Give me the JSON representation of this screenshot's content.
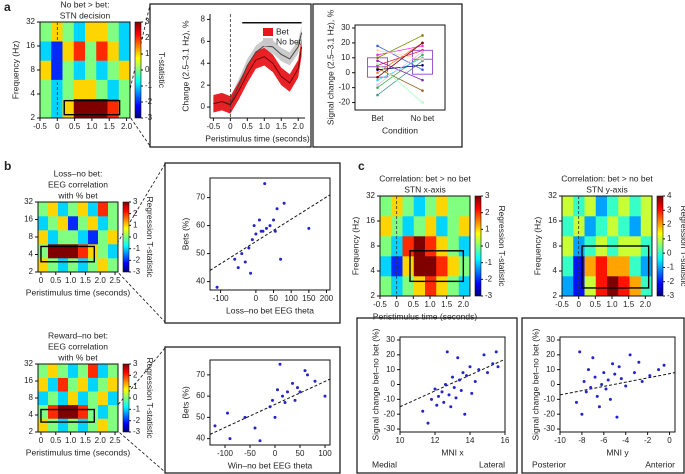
{
  "panels": [
    "a",
    "b",
    "c"
  ],
  "chart_data": [
    {
      "type": "heatmap",
      "title": [
        "No bet > bet:",
        "STN decision"
      ],
      "ylabel": "Frequency (Hz)",
      "xlim": [
        -0.5,
        2.1
      ],
      "xticks": [
        -0.5,
        0,
        0.5,
        {
          "value": 1,
          "label": "1.0"
        },
        {
          "value": 1.5,
          "label": "1.5"
        },
        {
          "value": 2,
          "label": "2.0"
        }
      ],
      "ylim": [
        2,
        32
      ],
      "yticks": [
        2,
        4,
        8,
        16,
        32
      ],
      "ylog": true,
      "event_time": 0,
      "z": [
        [
          0,
          -1,
          1,
          3,
          3,
          3,
          2,
          0
        ],
        [
          0,
          -1,
          0,
          1,
          1,
          0,
          -1,
          0
        ],
        [
          1,
          -2,
          0,
          -1,
          0,
          -1,
          0,
          1
        ],
        [
          -1,
          -2,
          1,
          2,
          0,
          2,
          1,
          -1
        ],
        [
          0,
          1,
          0,
          -1,
          1,
          1,
          0,
          -1
        ]
      ],
      "clim": [
        -3,
        3
      ],
      "cticks": [
        3,
        2,
        1,
        0,
        -1,
        -2,
        -3
      ],
      "clabel": "T-statistic",
      "roi": {
        "x": [
          0.2,
          1.8
        ],
        "y": [
          2.2,
          3.3
        ]
      }
    },
    {
      "type": "band_line",
      "ylabel": "Change (2.5–3.1 Hz), %",
      "xlabel": "Peristimulus time (seconds)",
      "xlim": [
        -0.6,
        2.2
      ],
      "xticks": [
        -0.5,
        0,
        0.5,
        {
          "value": 1,
          "label": "1.0"
        },
        {
          "value": 1.5,
          "label": "1.5"
        },
        {
          "value": 2,
          "label": "2.0"
        }
      ],
      "ylim": [
        -1,
        8.5
      ],
      "yticks": [
        0,
        2,
        4,
        6,
        8
      ],
      "event_time": 0,
      "sig_bar": {
        "x": [
          0.35,
          2.1
        ],
        "y": 7.7
      },
      "x": [
        -0.5,
        -0.25,
        0,
        0.25,
        0.5,
        0.75,
        1,
        1.25,
        1.5,
        1.75,
        2,
        2.1
      ],
      "series": [
        {
          "name": "No bet",
          "color": "#444444",
          "band_color": "#c8c8c8",
          "values": [
            0.3,
            0.5,
            0.3,
            2.0,
            3.8,
            5.0,
            5.6,
            5.5,
            4.8,
            4.4,
            5.5,
            6.8
          ],
          "lower": [
            -0.3,
            -0.1,
            -0.3,
            1.4,
            3.2,
            4.4,
            5.0,
            4.9,
            4.2,
            3.8,
            4.9,
            6.2
          ],
          "upper": [
            0.9,
            1.1,
            0.9,
            2.6,
            4.4,
            5.6,
            6.2,
            6.1,
            5.4,
            5.0,
            6.1,
            7.4
          ]
        },
        {
          "name": "Bet",
          "color": "#7a0000",
          "band_color": "#e8161b",
          "values": [
            0.3,
            0.5,
            0.2,
            1.5,
            3.0,
            4.3,
            4.6,
            4.0,
            2.8,
            2.2,
            3.5,
            5.5
          ],
          "lower": [
            -0.5,
            -0.3,
            -0.6,
            0.7,
            2.2,
            3.5,
            3.8,
            3.2,
            2.0,
            1.4,
            2.7,
            4.7
          ],
          "upper": [
            1.1,
            1.3,
            1.0,
            2.3,
            3.8,
            5.1,
            5.4,
            4.8,
            3.6,
            3.0,
            4.3,
            6.3
          ]
        }
      ]
    },
    {
      "type": "paired",
      "ylabel": "Signal change (2.5–3.1 Hz), %",
      "xlabel": "Condition",
      "categories": [
        "Bet",
        "No bet"
      ],
      "ylim": [
        -25,
        32
      ],
      "yticks": [
        -20,
        -10,
        0,
        10,
        20,
        30
      ],
      "values": [
        [
          5,
          -10,
          18,
          0,
          8,
          -5,
          12,
          3,
          -15,
          10,
          2,
          -8,
          6,
          15,
          -3
        ],
        [
          15,
          12,
          2,
          20,
          -5,
          10,
          18,
          -12,
          8,
          25,
          5,
          14,
          -20,
          9,
          20
        ]
      ],
      "boxes": [
        {
          "q1": -3,
          "median": 4,
          "q3": 10
        },
        {
          "q1": -1,
          "median": 9,
          "q3": 15
        }
      ],
      "box_color": "#9b59d0",
      "line_colors": [
        "#e6194b",
        "#3cb44b",
        "#4363d8",
        "#f58231",
        "#911eb4",
        "#42d4f4",
        "#f032e6",
        "#9a6324",
        "#469990",
        "#808000",
        "#000075",
        "#e6beff",
        "#aaffc3",
        "#ffd8b1",
        "#800000"
      ]
    },
    {
      "type": "heatmap",
      "title": [
        "Loss–no bet:",
        "EEG correlation",
        "with % bet"
      ],
      "xlabel": "Peristimulus time (seconds)",
      "xlim": [
        -0.1,
        2.6
      ],
      "xticks": [
        0,
        0.5,
        {
          "value": 1,
          "label": "1.0"
        },
        {
          "value": 1.5,
          "label": "1.5"
        },
        {
          "value": 2,
          "label": "2.0"
        },
        {
          "value": 2.5,
          "label": "2.5"
        }
      ],
      "ylim": [
        2,
        32
      ],
      "yticks": [
        2,
        4,
        8,
        16,
        32
      ],
      "ylog": true,
      "z": [
        [
          1,
          0,
          -1,
          0,
          -1,
          0,
          1,
          0
        ],
        [
          0,
          3,
          3,
          3,
          2,
          1,
          0,
          -1
        ],
        [
          1,
          -1,
          0,
          0,
          -1,
          -2,
          0,
          1
        ],
        [
          -1,
          0,
          1,
          -2,
          0,
          1,
          -1,
          0
        ],
        [
          0,
          1,
          -1,
          0,
          1,
          -1,
          2,
          0
        ]
      ],
      "clim": [
        -3,
        3
      ],
      "cticks": [
        3,
        2,
        1,
        0,
        -1,
        -2,
        -3
      ],
      "clabel": "Regression T-statistic",
      "roi": {
        "x": [
          0,
          1.8
        ],
        "y": [
          3,
          5.5
        ]
      }
    },
    {
      "type": "scatter",
      "ylabel": "Bets (%)",
      "xlabel": "Loss–no bet EEG theta",
      "color": "#2323d0",
      "xlim": [
        -130,
        210
      ],
      "xticks": [
        -100,
        0,
        50,
        100,
        150,
        200
      ],
      "ylim": [
        37,
        77
      ],
      "yticks": [
        40,
        50,
        60,
        70
      ],
      "x": [
        -110,
        -60,
        -50,
        -40,
        -30,
        -20,
        -15,
        -10,
        -5,
        0,
        10,
        15,
        20,
        25,
        30,
        40,
        50,
        55,
        60,
        70,
        80,
        150
      ],
      "y": [
        38,
        48,
        45,
        50,
        47,
        52,
        43,
        55,
        60,
        57,
        62,
        58,
        58,
        75,
        59,
        60,
        62,
        58,
        66,
        48,
        68,
        59
      ],
      "fit": {
        "x": [
          -130,
          210
        ],
        "y": [
          44,
          71
        ]
      }
    },
    {
      "type": "heatmap",
      "title": [
        "Reward–no bet:",
        "EEG correlation",
        "with % bet"
      ],
      "xlabel": "Peristimulus time (seconds)",
      "xlim": [
        -0.1,
        2.6
      ],
      "xticks": [
        0,
        0.5,
        {
          "value": 1,
          "label": "1.0"
        },
        {
          "value": 1.5,
          "label": "1.5"
        },
        {
          "value": 2,
          "label": "2.0"
        },
        {
          "value": 2.5,
          "label": "2.5"
        }
      ],
      "ylim": [
        2,
        32
      ],
      "yticks": [
        2,
        4,
        8,
        16,
        32
      ],
      "ylog": true,
      "z": [
        [
          1,
          0,
          -1,
          0,
          -1,
          0,
          1,
          0
        ],
        [
          0,
          2,
          3,
          3,
          2,
          0,
          -1,
          0
        ],
        [
          -1,
          0,
          -1,
          1,
          -1,
          0,
          1,
          -1
        ],
        [
          1,
          -1,
          2,
          0,
          1,
          -1,
          0,
          1
        ],
        [
          0,
          1,
          0,
          -1,
          0,
          2,
          -1,
          0
        ]
      ],
      "clim": [
        -3,
        3
      ],
      "cticks": [
        3,
        2,
        1,
        0,
        -1,
        -2,
        -3
      ],
      "clabel": "Regression T-statistic",
      "roi": {
        "x": [
          0,
          1.8
        ],
        "y": [
          3,
          5
        ]
      }
    },
    {
      "type": "scatter",
      "ylabel": "Bets (%)",
      "xlabel": "Win–no bet EEG theta",
      "color": "#2323d0",
      "xlim": [
        -130,
        110
      ],
      "xticks": [
        -100,
        -50,
        0,
        50,
        100
      ],
      "ylim": [
        37,
        77
      ],
      "yticks": [
        40,
        50,
        60,
        70
      ],
      "x": [
        -120,
        -95,
        -90,
        -60,
        -40,
        -30,
        -10,
        -5,
        0,
        5,
        10,
        15,
        20,
        25,
        35,
        40,
        45,
        50,
        60,
        65,
        80,
        100
      ],
      "y": [
        46,
        52,
        40,
        50,
        45,
        39,
        55,
        58,
        50,
        63,
        75,
        60,
        57,
        62,
        66,
        58,
        64,
        62,
        72,
        70,
        67,
        60
      ],
      "fit": {
        "x": [
          -130,
          110
        ],
        "y": [
          42,
          68
        ]
      }
    },
    {
      "type": "heatmap",
      "title": [
        "Correlation: bet > no bet",
        "STN x-axis"
      ],
      "ylabel": "Frequency (Hz)",
      "xlabel": "Peristimulus time (seconds)",
      "xlim": [
        -0.5,
        2.2
      ],
      "xticks": [
        -0.5,
        0,
        0.5,
        {
          "value": 1,
          "label": "1.0"
        },
        {
          "value": 1.5,
          "label": "1.5"
        },
        {
          "value": 2,
          "label": "2.0"
        }
      ],
      "ylim": [
        2,
        32
      ],
      "yticks": [
        2,
        4,
        8,
        16,
        32
      ],
      "ylog": true,
      "event_time": 0,
      "z": [
        [
          0,
          -1,
          0,
          1,
          2,
          1,
          0,
          -1
        ],
        [
          -1,
          -2,
          1,
          3,
          3,
          2,
          1,
          0
        ],
        [
          0,
          -1,
          2,
          3,
          2,
          1,
          0,
          -1
        ],
        [
          1,
          0,
          -1,
          0,
          1,
          -1,
          0,
          1
        ],
        [
          0,
          1,
          0,
          -1,
          0,
          1,
          0,
          0
        ]
      ],
      "clim": [
        -3,
        3
      ],
      "cticks": [
        3,
        2,
        1,
        0,
        -1,
        -2,
        -3
      ],
      "clabel": "Regression T-statistic",
      "roi": {
        "x": [
          0.4,
          2.0
        ],
        "y": [
          3,
          7
        ]
      }
    },
    {
      "type": "heatmap",
      "title": [
        "Correlation: bet > no bet",
        "STN y-axis"
      ],
      "ylabel": "Frequency (Hz)",
      "xlim": [
        -0.5,
        2.2
      ],
      "xticks": [
        -0.5,
        0,
        0.5,
        {
          "value": 1,
          "label": "1.0"
        },
        {
          "value": 1.5,
          "label": "1.5"
        },
        {
          "value": 2,
          "label": "2.0"
        }
      ],
      "ylim": [
        2,
        32
      ],
      "yticks": [
        2,
        4,
        8,
        16,
        32
      ],
      "ylog": true,
      "event_time": 0,
      "z": [
        [
          -1,
          -2,
          1,
          3,
          4,
          3,
          2,
          0
        ],
        [
          0,
          -2,
          2,
          3,
          2,
          2,
          0,
          -1
        ],
        [
          1,
          -1,
          0,
          1,
          0,
          1,
          1,
          0
        ],
        [
          0,
          1,
          -1,
          0,
          1,
          0,
          -1,
          1
        ],
        [
          1,
          0,
          1,
          -1,
          0,
          1,
          0,
          1
        ]
      ],
      "clim": [
        -3,
        4
      ],
      "cticks": [
        4,
        3,
        2,
        1,
        0,
        -1,
        -2,
        -3
      ],
      "clabel": "Regression T-statistic",
      "roi": {
        "x": [
          0.1,
          2.1
        ],
        "y": [
          2.5,
          8
        ]
      }
    },
    {
      "type": "scatter",
      "ylabel": "Signal change bet–no bet (%)",
      "xlabel": "MNI x",
      "annotations": [
        "Medial",
        "Lateral"
      ],
      "color": "#2323d0",
      "xlim": [
        10,
        16
      ],
      "xticks": [
        10,
        12,
        14,
        16
      ],
      "ylim": [
        -32,
        32
      ],
      "yticks": [
        -30,
        -20,
        -10,
        0,
        10,
        20,
        30
      ],
      "x": [
        11.3,
        11.6,
        11.8,
        12.0,
        12.1,
        12.2,
        12.4,
        12.5,
        12.6,
        12.7,
        12.8,
        12.9,
        13.0,
        13.1,
        13.2,
        13.3,
        13.4,
        13.5,
        13.6,
        13.7,
        13.8,
        14.0,
        14.1,
        14.3,
        14.5,
        14.8,
        15.0,
        15.3,
        15.5,
        15.6
      ],
      "y": [
        -18,
        -26,
        -10,
        -3,
        -14,
        -8,
        -5,
        -12,
        0,
        22,
        -7,
        -15,
        5,
        -2,
        -9,
        18,
        3,
        -4,
        8,
        -20,
        6,
        12,
        -6,
        2,
        10,
        20,
        8,
        14,
        22,
        12
      ],
      "fit": {
        "x": [
          10,
          16
        ],
        "y": [
          -15,
          17
        ]
      }
    },
    {
      "type": "scatter",
      "ylabel": "Signal change bet–no bet (%)",
      "xlabel": "MNI y",
      "annotations": [
        "Posterior",
        "Anterior"
      ],
      "color": "#2323d0",
      "xlim": [
        -10,
        0.5
      ],
      "xticks": [
        -10,
        -8,
        -6,
        -4,
        -2,
        0
      ],
      "ylim": [
        -32,
        32
      ],
      "yticks": [
        -30,
        -20,
        -10,
        0,
        10,
        20,
        30
      ],
      "x": [
        -8.5,
        -8.2,
        -8.0,
        -7.8,
        -7.6,
        -7.4,
        -7.2,
        -7.0,
        -6.8,
        -6.6,
        -6.4,
        -6.2,
        -6.0,
        -5.8,
        -5.6,
        -5.4,
        -5.2,
        -5.0,
        -4.8,
        -4.6,
        -4.4,
        -4.0,
        -3.6,
        -3.2,
        -2.8,
        -2.5,
        -1.8,
        -1,
        -0.5
      ],
      "y": [
        -12,
        22,
        -20,
        2,
        -5,
        10,
        -2,
        18,
        5,
        -8,
        -15,
        0,
        8,
        -3,
        3,
        -10,
        14,
        7,
        -22,
        12,
        4,
        -1,
        20,
        8,
        15,
        2,
        6,
        10,
        13
      ],
      "fit": {
        "x": [
          -10,
          0.5
        ],
        "y": [
          -7,
          8
        ]
      }
    }
  ]
}
